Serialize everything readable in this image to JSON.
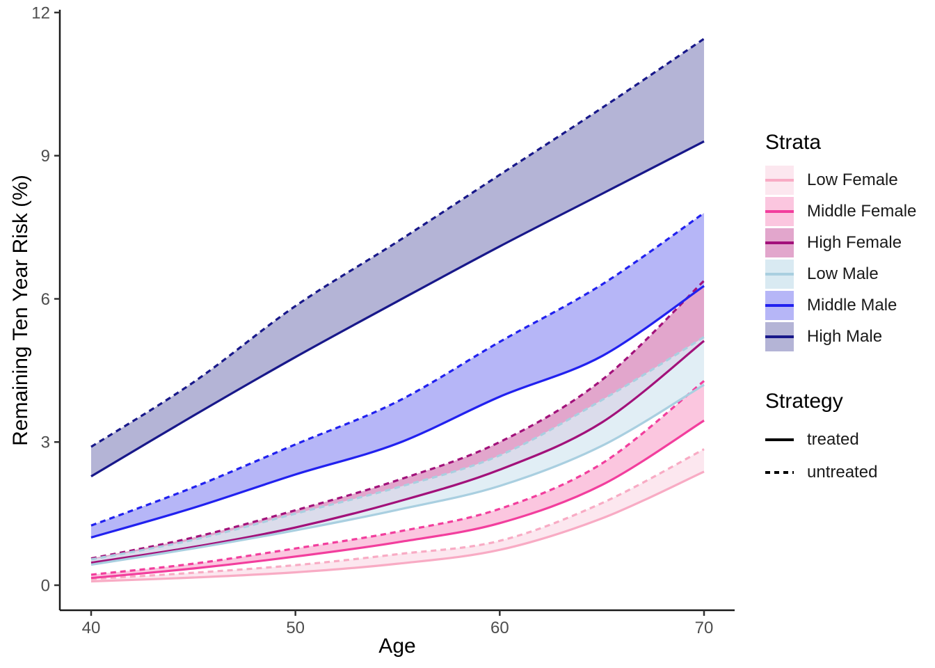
{
  "chart_data": {
    "type": "line",
    "title": "",
    "xlabel": "Age",
    "ylabel": "Remaining Ten Year Risk (%)",
    "x_ticks": [
      40,
      50,
      60,
      70
    ],
    "y_ticks": [
      0,
      3,
      6,
      9,
      12
    ],
    "xlim": [
      40,
      70
    ],
    "ylim": [
      0,
      12
    ],
    "grid": false,
    "legend_position": "right",
    "ages": [
      40,
      45,
      50,
      55,
      60,
      65,
      70
    ],
    "strata": [
      {
        "name": "Low Female",
        "line_color": "#f8abc4",
        "fill_color": "#fce7ef",
        "fill_opacity": 1,
        "untreated": [
          0.13,
          0.26,
          0.42,
          0.65,
          0.93,
          1.72,
          2.85
        ],
        "treated": [
          0.08,
          0.16,
          0.27,
          0.45,
          0.74,
          1.4,
          2.38
        ]
      },
      {
        "name": "Middle Female",
        "line_color": "#f23e9d",
        "fill_color": "#fbc6df",
        "fill_opacity": 1,
        "untreated": [
          0.22,
          0.45,
          0.77,
          1.12,
          1.6,
          2.55,
          4.28
        ],
        "treated": [
          0.15,
          0.35,
          0.6,
          0.9,
          1.3,
          2.1,
          3.45
        ]
      },
      {
        "name": "High Female",
        "line_color": "#a2117a",
        "fill_color": "#e2a6cc",
        "fill_opacity": 1,
        "untreated": [
          0.56,
          1.0,
          1.57,
          2.2,
          3.0,
          4.3,
          6.38
        ],
        "treated": [
          0.47,
          0.8,
          1.21,
          1.75,
          2.42,
          3.41,
          5.12
        ]
      },
      {
        "name": "Low Male",
        "line_color": "#a9cfe0",
        "fill_color": "#d9eaf2",
        "fill_opacity": 0.8,
        "untreated": [
          0.54,
          0.95,
          1.5,
          2.05,
          2.72,
          3.88,
          5.2
        ],
        "treated": [
          0.43,
          0.77,
          1.15,
          1.58,
          2.08,
          2.92,
          4.2
        ]
      },
      {
        "name": "Middle Male",
        "line_color": "#2121ef",
        "fill_color": "#b6b6f7",
        "fill_opacity": 1,
        "untreated": [
          1.25,
          2.05,
          2.95,
          3.85,
          5.1,
          6.3,
          7.8
        ],
        "treated": [
          1.0,
          1.62,
          2.32,
          2.97,
          3.95,
          4.8,
          6.27
        ]
      },
      {
        "name": "High Male",
        "line_color": "#18188a",
        "fill_color": "#b4b4d6",
        "fill_opacity": 1,
        "untreated": [
          2.9,
          4.25,
          5.85,
          7.2,
          8.6,
          10.0,
          11.45
        ],
        "treated": [
          2.28,
          3.55,
          4.78,
          5.95,
          7.1,
          8.2,
          9.3
        ]
      }
    ],
    "strategies": [
      {
        "label": "treated",
        "style": "solid"
      },
      {
        "label": "untreated",
        "style": "dashed"
      }
    ]
  },
  "legend": {
    "strata_title": "Strata",
    "strategy_title": "Strategy"
  }
}
